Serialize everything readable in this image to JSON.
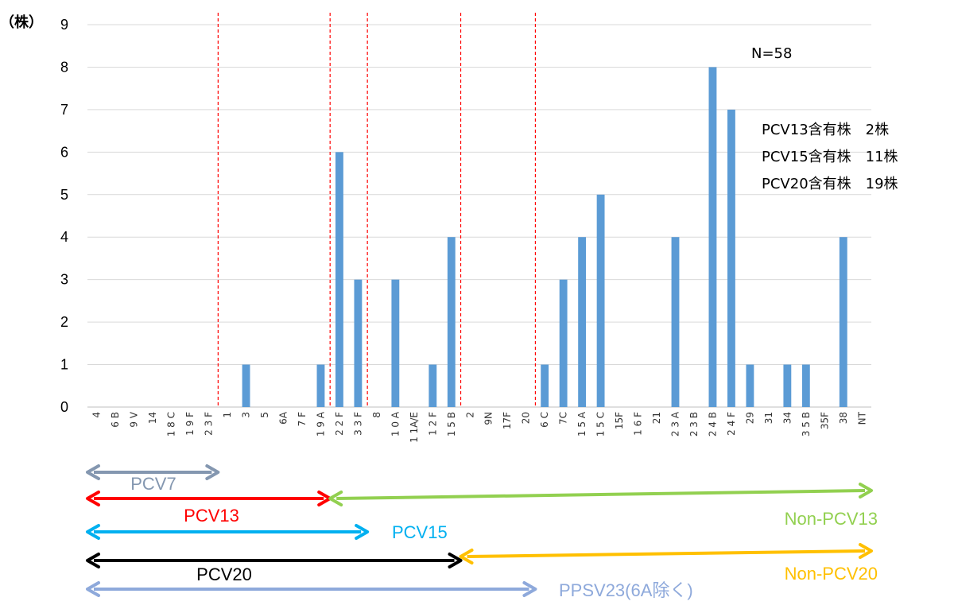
{
  "chart_data": {
    "type": "bar",
    "y_unit": "（株）",
    "ylim": [
      0,
      9
    ],
    "yticks": [
      "0",
      "1",
      "2",
      "3",
      "4",
      "5",
      "6",
      "7",
      "8",
      "9"
    ],
    "grid": true,
    "categories": [
      "4",
      "6 B",
      "9 V",
      "14",
      "1 8 C",
      "1 9 F",
      "2 3 F",
      "1",
      "3",
      "5",
      "6A",
      "7 F",
      "1 9 A",
      "2 2 F",
      "3 3 F",
      "8",
      "1 0 A",
      "1 1A/E",
      "1 2 F",
      "1 5 B",
      "2",
      "9N",
      "17F",
      "20",
      "6 C",
      "7C",
      "1 5 A",
      "1 5 C",
      "15F",
      "1 6 F",
      "21",
      "2 3 A",
      "2 3 B",
      "2 4 B",
      "2 4 F",
      "29",
      "31",
      "34",
      "3 5 B",
      "35F",
      "38",
      "NT"
    ],
    "values": [
      0,
      0,
      0,
      0,
      0,
      0,
      0,
      0,
      1,
      0,
      0,
      0,
      1,
      6,
      3,
      0,
      3,
      0,
      1,
      4,
      0,
      0,
      0,
      0,
      1,
      3,
      4,
      5,
      0,
      0,
      0,
      4,
      0,
      8,
      7,
      1,
      0,
      1,
      1,
      0,
      4,
      0
    ],
    "bar_color": "#5b9bd5",
    "group_dividers_after": [
      "2 3 F",
      "1 9 A",
      "3 3 F",
      "1 5 B",
      "20"
    ],
    "n_label": "N=58",
    "info_lines": [
      "PCV13含有株　2株",
      "PCV15含有株　11株",
      "PCV20含有株　19株"
    ],
    "arrows": [
      {
        "label": "PCV7",
        "color": "#8497b0",
        "from": "4",
        "to": "2 3 F",
        "label_side": "below"
      },
      {
        "label": "PCV13",
        "color": "#ff0000",
        "from": "4",
        "to": "1 9 A",
        "label_side": "below"
      },
      {
        "label": "Non-PCV13",
        "color": "#92d050",
        "from": "1 9 A",
        "to": "NT",
        "label_side": "below"
      },
      {
        "label": "PCV15",
        "color": "#00b0f0",
        "from": "4",
        "to": "3 3 F",
        "label_side": "right"
      },
      {
        "label": "PCV20",
        "color": "#000000",
        "from": "4",
        "to": "1 5 B",
        "label_side": "below"
      },
      {
        "label": "Non-PCV20",
        "color": "#ffc000",
        "from": "1 5 B",
        "to": "NT",
        "label_side": "below"
      },
      {
        "label": "PPSV23(6A除く)",
        "color": "#8ea9db",
        "from": "4",
        "to": "20",
        "label_side": "right"
      }
    ]
  }
}
